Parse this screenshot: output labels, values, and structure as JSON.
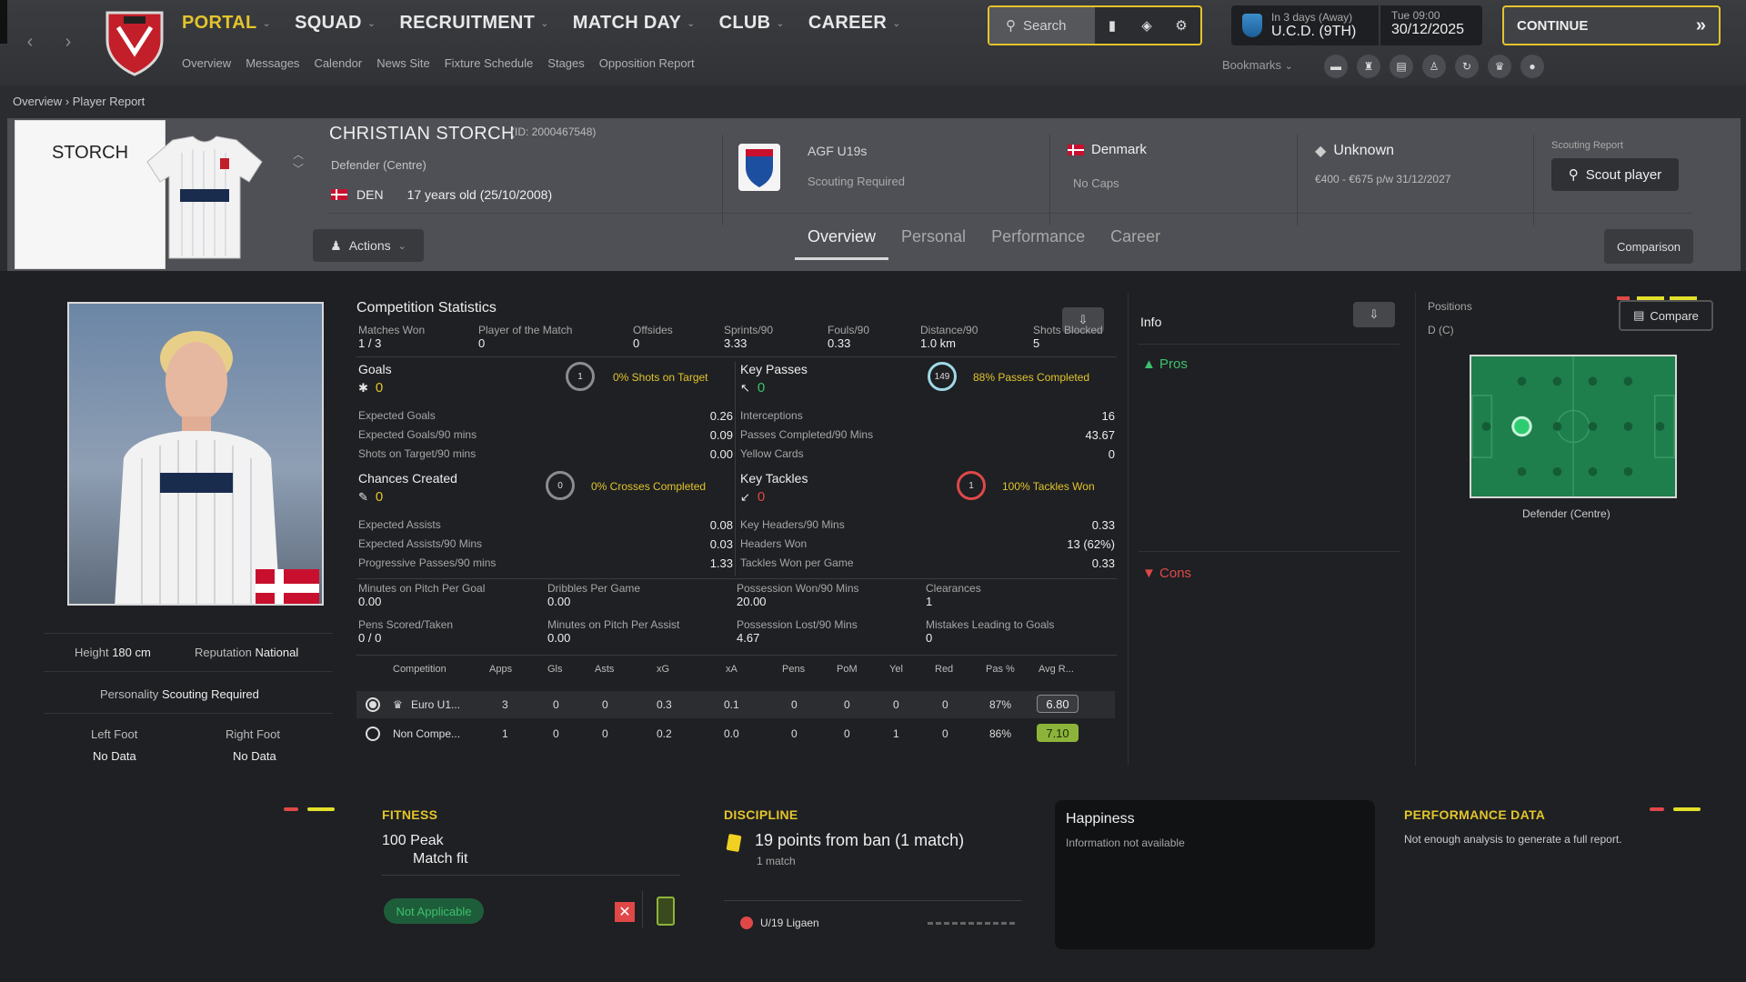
{
  "nav": {
    "items": [
      {
        "label": "PORTAL",
        "active": true
      },
      {
        "label": "SQUAD",
        "active": false
      },
      {
        "label": "RECRUITMENT",
        "active": false
      },
      {
        "label": "MATCH DAY",
        "active": false
      },
      {
        "label": "CLUB",
        "active": false
      },
      {
        "label": "CAREER",
        "active": false
      }
    ],
    "subnav": [
      "Overview",
      "Messages",
      "Calendor",
      "News Site",
      "Fixture Schedule",
      "Stages",
      "Opposition Report"
    ],
    "search_label": "Search",
    "bookmarks_label": "Bookmarks"
  },
  "next_match": {
    "when": "In 3 days (Away)",
    "opponent": "U.C.D. (9TH)"
  },
  "date": {
    "day_time": "Tue 09:00",
    "date": "30/12/2025"
  },
  "continue_label": "CONTINUE",
  "breadcrumb": {
    "root": "Overview",
    "current": "Player Report"
  },
  "player": {
    "short_name": "STORCH",
    "name": "CHRISTIAN STORCH",
    "id": "(ID: 2000467548)",
    "position": "Defender (Centre)",
    "nation_code": "DEN",
    "age": "17 years old (25/10/2008)",
    "club": "AGF U19s",
    "club_status": "Scouting Required",
    "country": "Denmark",
    "caps": "No Caps",
    "value": "Unknown",
    "wage": "€400 - €675 p/w 31/12/2027",
    "scouting_report_label": "Scouting Report",
    "scout_button": "Scout player",
    "actions_label": "Actions",
    "comparison_label": "Comparison"
  },
  "tabs": [
    {
      "label": "Overview",
      "active": true
    },
    {
      "label": "Personal",
      "active": false
    },
    {
      "label": "Performance",
      "active": false
    },
    {
      "label": "Career",
      "active": false
    }
  ],
  "attributes": {
    "height_label": "Height",
    "height": "180 cm",
    "reputation_label": "Reputation",
    "reputation": "National",
    "personality_label": "Personality",
    "personality": "Scouting Required",
    "left_foot_label": "Left Foot",
    "left_foot": "No Data",
    "right_foot_label": "Right Foot",
    "right_foot": "No Data"
  },
  "comp_stats": {
    "title": "Competition Statistics",
    "summary": [
      {
        "label": "Matches Won",
        "value": "1 / 3"
      },
      {
        "label": "Player of the Match",
        "value": "0"
      },
      {
        "label": "Offsides",
        "value": "0"
      },
      {
        "label": "Sprints/90",
        "value": "3.33"
      },
      {
        "label": "Fouls/90",
        "value": "0.33"
      },
      {
        "label": "Distance/90",
        "value": "1.0 km"
      },
      {
        "label": "Shots Blocked",
        "value": "5"
      }
    ],
    "goals": {
      "title": "Goals",
      "value": "0",
      "ring": "1",
      "ring_label": "0% Shots on Target",
      "rows": [
        [
          "Expected Goals",
          "0.26"
        ],
        [
          "Expected Goals/90 mins",
          "0.09"
        ],
        [
          "Shots on Target/90 mins",
          "0.00"
        ]
      ]
    },
    "key_passes": {
      "title": "Key Passes",
      "value": "0",
      "ring": "149",
      "ring_label": "88% Passes Completed",
      "rows": [
        [
          "Interceptions",
          "16"
        ],
        [
          "Passes Completed/90 Mins",
          "43.67"
        ],
        [
          "Yellow Cards",
          "0"
        ]
      ]
    },
    "chances": {
      "title": "Chances Created",
      "value": "0",
      "ring": "0",
      "ring_label": "0% Crosses Completed",
      "rows": [
        [
          "Expected Assists",
          "0.08"
        ],
        [
          "Expected Assists/90 Mins",
          "0.03"
        ],
        [
          "Progressive Passes/90 mins",
          "1.33"
        ]
      ]
    },
    "tackles": {
      "title": "Key Tackles",
      "value": "0",
      "ring": "1",
      "ring_label": "100% Tackles Won",
      "rows": [
        [
          "Key Headers/90 Mins",
          "0.33"
        ],
        [
          "Headers Won",
          "13 (62%)"
        ],
        [
          "Tackles Won per Game",
          "0.33"
        ]
      ]
    },
    "misc": [
      {
        "label": "Minutes on Pitch Per Goal",
        "value": "0.00"
      },
      {
        "label": "Dribbles Per Game",
        "value": "0.00"
      },
      {
        "label": "Possession Won/90 Mins",
        "value": "20.00"
      },
      {
        "label": "Clearances",
        "value": "1"
      },
      {
        "label": "Pens Scored/Taken",
        "value": "0 / 0"
      },
      {
        "label": "Minutes on Pitch Per Assist",
        "value": "0.00"
      },
      {
        "label": "Possession Lost/90 Mins",
        "value": "4.67"
      },
      {
        "label": "Mistakes Leading to Goals",
        "value": "0"
      }
    ],
    "table_headers": [
      "Competition",
      "Apps",
      "Gls",
      "Asts",
      "xG",
      "xA",
      "Pens",
      "PoM",
      "Yel",
      "Red",
      "Pas %",
      "Avg R..."
    ],
    "table_rows": [
      [
        "Euro U1...",
        "3",
        "0",
        "0",
        "0.3",
        "0.1",
        "0",
        "0",
        "0",
        "0",
        "87%",
        "6.80"
      ],
      [
        "Non Compe...",
        "1",
        "0",
        "0",
        "0.2",
        "0.0",
        "0",
        "0",
        "1",
        "0",
        "86%",
        "7.10"
      ]
    ]
  },
  "info": {
    "title": "Info",
    "pros": "Pros",
    "cons": "Cons"
  },
  "positions": {
    "title": "Positions",
    "code": "D (C)",
    "compare": "Compare",
    "caption": "Defender (Centre)"
  },
  "fitness": {
    "title": "FITNESS",
    "line1": "100 Peak",
    "line2": "Match fit",
    "pill": "Not Applicable"
  },
  "discipline": {
    "title": "DISCIPLINE",
    "headline": "19 points from ban (1 match)",
    "sub": "1 match",
    "league": "U/19 Ligaen"
  },
  "happiness": {
    "title": "Happiness",
    "text": "Information not available"
  },
  "performance_data": {
    "title": "PERFORMANCE DATA",
    "text": "Not enough analysis to generate a full report."
  },
  "colors": {
    "accent": "#e3c42c",
    "pitch": "#1f7f4c",
    "good": "#3bc16d",
    "bad": "#e04848"
  }
}
